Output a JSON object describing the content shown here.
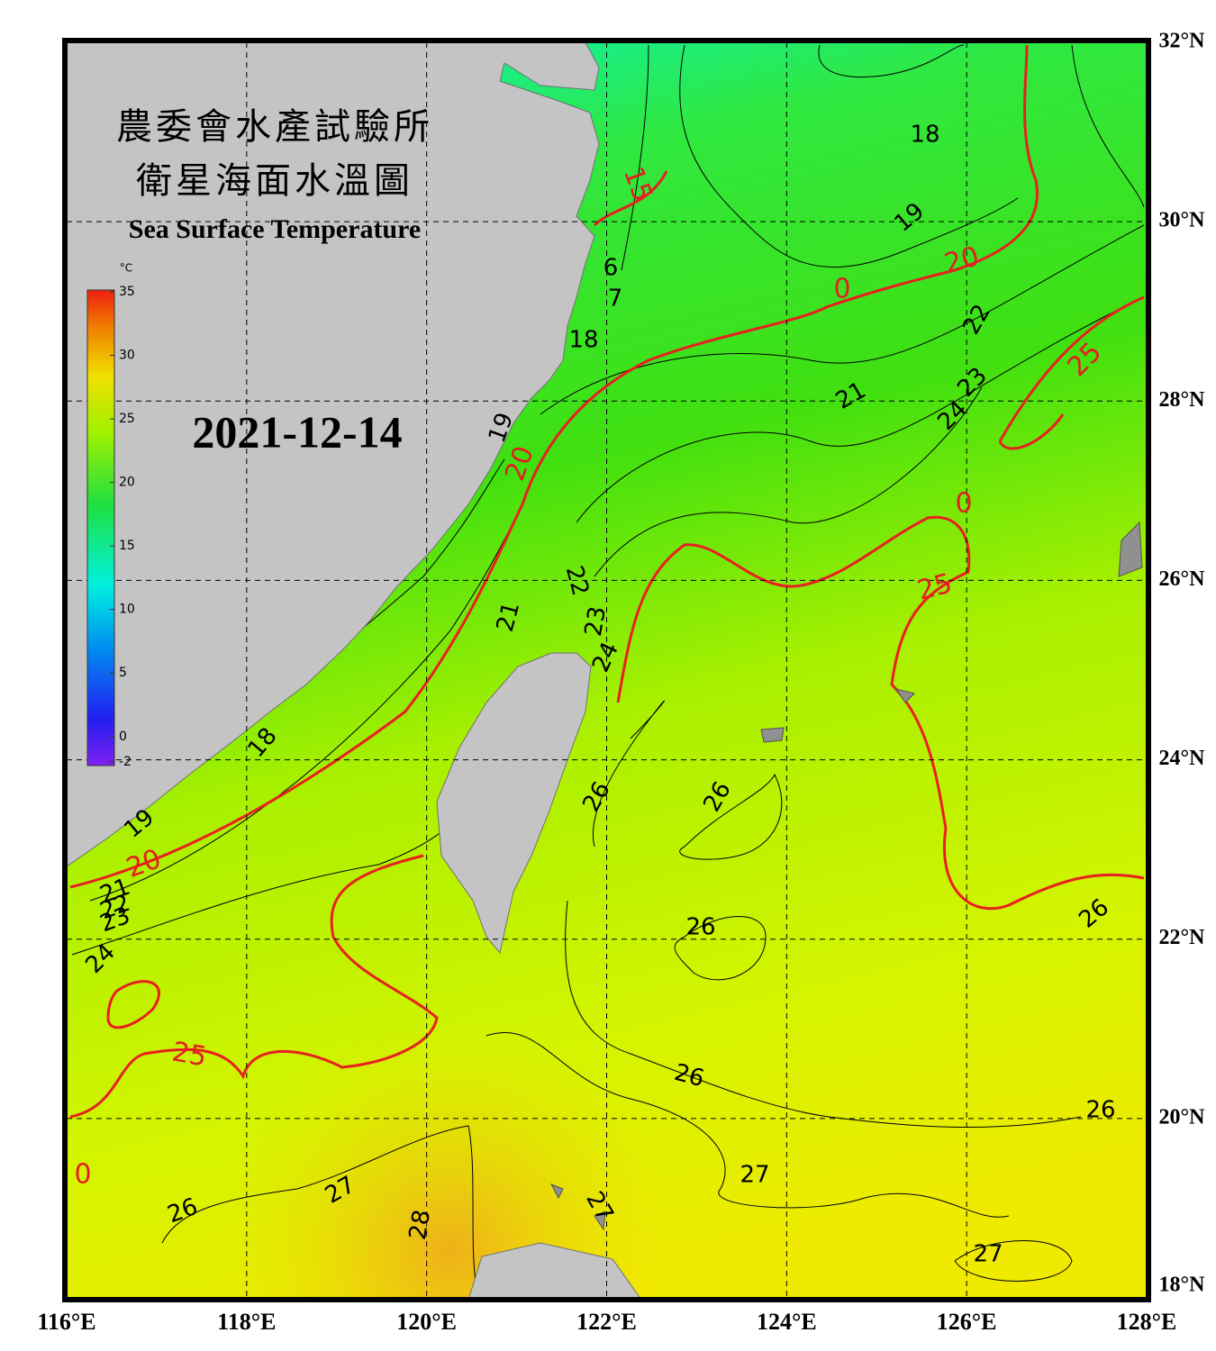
{
  "title": [
    "農委會水產試驗所",
    "衛星海面水溫圖"
  ],
  "subtitle": "Sea Surface Temperature",
  "date": "2021-12-14",
  "colorbar": {
    "unit": "°C",
    "lim": [
      -2,
      35
    ],
    "ticks": [
      35,
      30,
      25,
      20,
      15,
      10,
      5,
      0,
      -2
    ]
  },
  "map": {
    "lonlim": [
      116,
      128
    ],
    "latlim": [
      18,
      32
    ],
    "lonticks": [
      {
        "value": 116,
        "label": "116°E"
      },
      {
        "value": 118,
        "label": "118°E"
      },
      {
        "value": 120,
        "label": "120°E"
      },
      {
        "value": 122,
        "label": "122°E"
      },
      {
        "value": 124,
        "label": "124°E"
      },
      {
        "value": 126,
        "label": "126°E"
      },
      {
        "value": 128,
        "label": "128°E"
      }
    ],
    "latticks": [
      {
        "value": 32,
        "label": "32°N"
      },
      {
        "value": 30,
        "label": "30°N"
      },
      {
        "value": 28,
        "label": "28°N"
      },
      {
        "value": 26,
        "label": "26°N"
      },
      {
        "value": 24,
        "label": "24°N"
      },
      {
        "value": 22,
        "label": "22°N"
      },
      {
        "value": 20,
        "label": "20°N"
      },
      {
        "value": 18,
        "label": "18°N"
      }
    ]
  },
  "contour_labels": [
    "18",
    "19",
    "20",
    "15",
    "6",
    "7",
    "18",
    "19",
    "20",
    "21",
    "22",
    "23",
    "24",
    "25",
    "0",
    "0",
    "25",
    "22",
    "21",
    "23",
    "24",
    "18",
    "19",
    "20",
    "21",
    "22",
    "23",
    "24",
    "26",
    "26",
    "26",
    "26",
    "25",
    "0",
    "26",
    "26",
    "27",
    "27",
    "26",
    "28",
    "27",
    "27"
  ]
}
